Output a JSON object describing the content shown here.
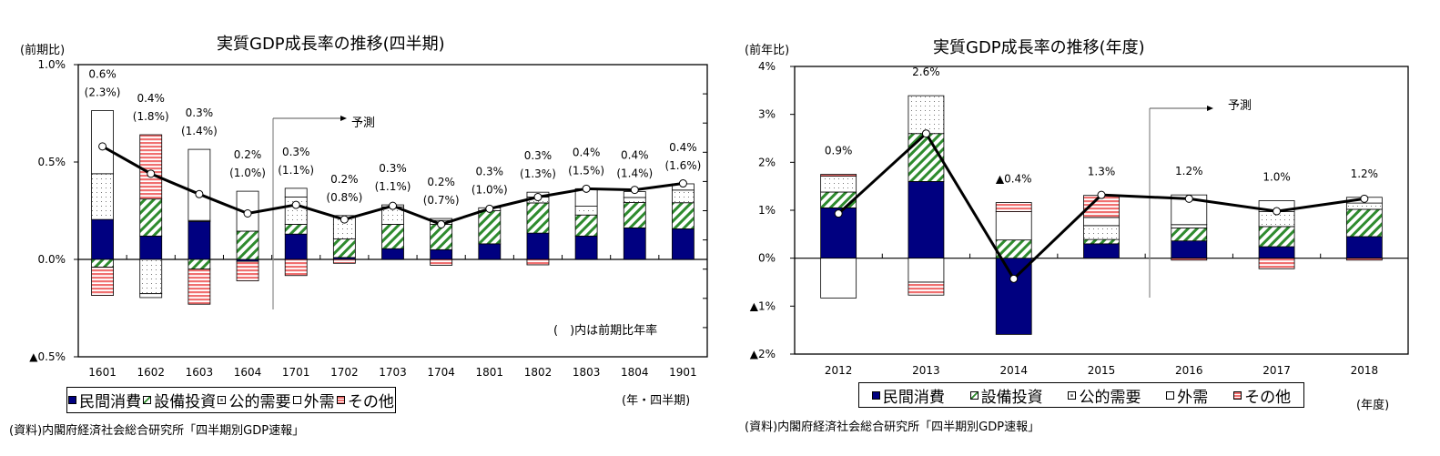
{
  "legend": [
    {
      "label": "民間消費",
      "color": "#000080",
      "pattern": "solid"
    },
    {
      "label": "設備投資",
      "color": "#2e8b2e",
      "pattern": "diagonal-hatch"
    },
    {
      "label": "公的需要",
      "color": "#888888",
      "pattern": "dots"
    },
    {
      "label": "外需",
      "color": "#ffffff",
      "pattern": "blank"
    },
    {
      "label": "その他",
      "color": "#f07070",
      "pattern": "horizontal-stripes"
    }
  ],
  "chart_data": [
    {
      "type": "bar",
      "stacked": true,
      "title": "実質GDP成長率の推移(四半期)",
      "ylabel": "(前期比)",
      "xlabel": "(年・四半期)",
      "ylim": [
        -0.5,
        1.0
      ],
      "yticks": [
        {
          "v": 1.0,
          "label": "1.0%"
        },
        {
          "v": 0.5,
          "label": "0.5%"
        },
        {
          "v": 0.0,
          "label": "0.0%"
        },
        {
          "v": -0.5,
          "label": "▲0.5%"
        }
      ],
      "categories": [
        "1601",
        "1602",
        "1603",
        "1604",
        "1701",
        "1702",
        "1703",
        "1704",
        "1801",
        "1802",
        "1803",
        "1804",
        "1901"
      ],
      "series": [
        {
          "name": "民間消費",
          "values": [
            0.205,
            0.12,
            0.195,
            -0.01,
            0.13,
            0.01,
            0.055,
            0.05,
            0.08,
            0.135,
            0.12,
            0.162,
            0.157
          ]
        },
        {
          "name": "設備投資",
          "values": [
            -0.04,
            0.19,
            -0.05,
            0.145,
            0.05,
            0.095,
            0.125,
            0.13,
            0.17,
            0.155,
            0.108,
            0.13,
            0.134
          ]
        },
        {
          "name": "公的需要",
          "values": [
            0.235,
            -0.176,
            0.005,
            0.0,
            0.14,
            0.11,
            0.09,
            0.02,
            0.0,
            0.03,
            0.045,
            0.026,
            0.065
          ]
        },
        {
          "name": "外需",
          "values": [
            0.324,
            -0.02,
            0.365,
            0.205,
            0.045,
            0.01,
            0.01,
            0.01,
            0.015,
            0.025,
            0.09,
            0.03,
            0.032
          ]
        },
        {
          "name": "その他",
          "values": [
            -0.145,
            0.33,
            -0.18,
            -0.1,
            -0.083,
            -0.02,
            0.0,
            -0.03,
            0.0,
            -0.028,
            0.0,
            0.0,
            0.0
          ]
        }
      ],
      "line": {
        "name": "実質GDP",
        "values": [
          0.58,
          0.44,
          0.335,
          0.236,
          0.28,
          0.205,
          0.275,
          0.18,
          0.26,
          0.32,
          0.363,
          0.357,
          0.39
        ]
      },
      "data_labels": [
        "0.6%",
        "0.4%",
        "0.3%",
        "0.2%",
        "0.3%",
        "0.2%",
        "0.3%",
        "0.2%",
        "0.3%",
        "0.3%",
        "0.4%",
        "0.4%",
        "0.4%"
      ],
      "data_labels_annualized": [
        "(2.3%)",
        "(1.8%)",
        "(1.4%)",
        "(1.0%)",
        "(1.1%)",
        "(0.8%)",
        "(1.1%)",
        "(0.7%)",
        "(1.0%)",
        "(1.3%)",
        "(1.5%)",
        "(1.4%)",
        "(1.6%)"
      ],
      "forecast_label": "予測",
      "forecast_start": "1701",
      "annotation": "(　)内は前期比年率",
      "source": "(資料)内閣府経済社会総合研究所「四半期別GDP速報」"
    },
    {
      "type": "bar",
      "stacked": true,
      "title": "実質GDP成長率の推移(年度)",
      "ylabel": "(前年比)",
      "xlabel": "(年度)",
      "ylim": [
        -2,
        4
      ],
      "yticks": [
        {
          "v": 4,
          "label": "4%"
        },
        {
          "v": 3,
          "label": "3%"
        },
        {
          "v": 2,
          "label": "2%"
        },
        {
          "v": 1,
          "label": "1%"
        },
        {
          "v": 0,
          "label": "0%"
        },
        {
          "v": -1,
          "label": "▲1%"
        },
        {
          "v": -2,
          "label": "▲2%"
        }
      ],
      "categories": [
        "2012",
        "2013",
        "2014",
        "2015",
        "2016",
        "2017",
        "2018"
      ],
      "series": [
        {
          "name": "民間消費",
          "values": [
            1.05,
            1.6,
            -1.59,
            0.3,
            0.36,
            0.24,
            0.45
          ]
        },
        {
          "name": "設備投資",
          "values": [
            0.33,
            1.0,
            0.38,
            0.09,
            0.27,
            0.42,
            0.57
          ]
        },
        {
          "name": "公的需要",
          "values": [
            0.33,
            0.79,
            0.0,
            0.29,
            0.07,
            0.31,
            0.13
          ]
        },
        {
          "name": "外需",
          "values": [
            -0.83,
            -0.5,
            0.59,
            0.17,
            0.62,
            0.23,
            0.12
          ]
        },
        {
          "name": "その他",
          "values": [
            0.04,
            -0.27,
            0.19,
            0.46,
            -0.04,
            -0.22,
            -0.04
          ]
        }
      ],
      "line": {
        "name": "実質GDP",
        "values": [
          0.93,
          2.6,
          -0.43,
          1.32,
          1.24,
          0.98,
          1.24
        ]
      },
      "data_labels": [
        "0.9%",
        "2.6%",
        "▲0.4%",
        "1.3%",
        "1.2%",
        "1.0%",
        "1.2%"
      ],
      "forecast_label": "予測",
      "forecast_start": "2016",
      "source": "(資料)内閣府経済社会総合研究所「四半期別GDP速報」"
    }
  ]
}
